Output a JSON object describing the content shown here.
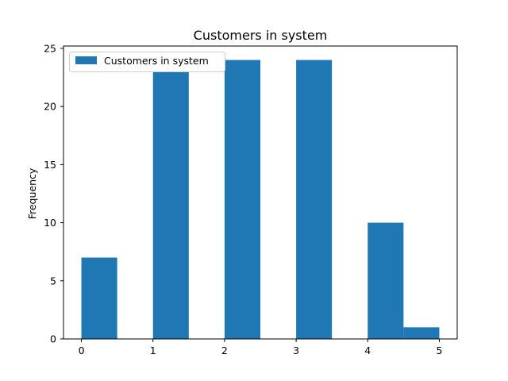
{
  "chart_data": {
    "type": "bar",
    "title": "Customers in system",
    "xlabel": "",
    "ylabel": "Frequency",
    "xlim": [
      -0.25,
      5.25
    ],
    "ylim": [
      0,
      25.2
    ],
    "x_ticks": [
      0,
      1,
      2,
      3,
      4,
      5
    ],
    "y_ticks": [
      0,
      5,
      10,
      15,
      20,
      25
    ],
    "bin_width": 0.5,
    "bins": [
      {
        "start": 0.0,
        "end": 0.5,
        "value": 7
      },
      {
        "start": 1.0,
        "end": 1.5,
        "value": 23
      },
      {
        "start": 2.0,
        "end": 2.5,
        "value": 24
      },
      {
        "start": 3.0,
        "end": 3.5,
        "value": 24
      },
      {
        "start": 4.0,
        "end": 4.5,
        "value": 10
      },
      {
        "start": 4.5,
        "end": 5.0,
        "value": 1
      }
    ],
    "series": [
      {
        "name": "Customers in system",
        "color": "#1f77b4"
      }
    ],
    "legend": {
      "placement": "top-left",
      "entries": [
        "Customers in system"
      ]
    },
    "grid": false
  }
}
